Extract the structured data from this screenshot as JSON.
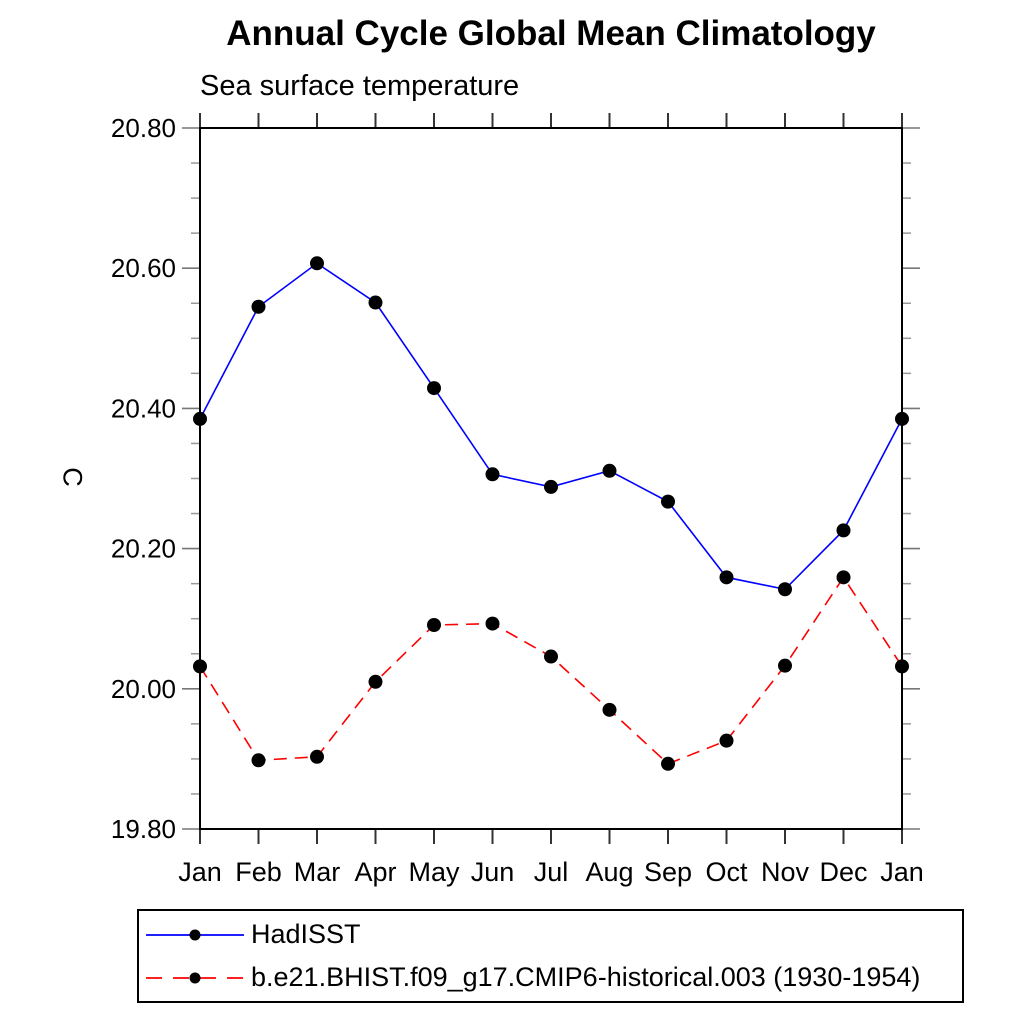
{
  "title": "Annual Cycle Global Mean Climatology",
  "subtitle": "Sea surface temperature",
  "ylabel": "C",
  "colors": {
    "hadisst_line": "#0000ff",
    "model_line": "#ff0000",
    "marker": "#000000",
    "axis": "#000000",
    "major_tick": "#777777",
    "minor_tick": "#999999"
  },
  "chart_data": {
    "type": "line",
    "title": "Annual Cycle Global Mean Climatology",
    "left_subtitle": "Sea surface temperature",
    "xlabel": "",
    "ylabel": "C",
    "categories": [
      "Jan",
      "Feb",
      "Mar",
      "Apr",
      "May",
      "Jun",
      "Jul",
      "Aug",
      "Sep",
      "Oct",
      "Nov",
      "Dec",
      "Jan"
    ],
    "series": [
      {
        "name": "HadISST",
        "color": "#0000ff",
        "line_style": "solid",
        "marker": "filled-circle",
        "marker_color": "#000000",
        "values": [
          20.385,
          20.545,
          20.607,
          20.551,
          20.429,
          20.306,
          20.288,
          20.311,
          20.267,
          20.159,
          20.142,
          20.226,
          20.385
        ]
      },
      {
        "name": "b.e21.BHIST.f09_g17.CMIP6-historical.003 (1930-1954)",
        "color": "#ff0000",
        "line_style": "dashed",
        "marker": "filled-circle",
        "marker_color": "#000000",
        "values": [
          20.032,
          19.898,
          19.903,
          20.01,
          20.091,
          20.093,
          20.046,
          19.97,
          19.893,
          19.926,
          20.033,
          20.159,
          20.032
        ]
      }
    ],
    "ylim": [
      19.8,
      20.8
    ],
    "ytick_labels": [
      "19.80",
      "20.00",
      "20.20",
      "20.40",
      "20.60",
      "20.80"
    ],
    "ytick_step": 0.2,
    "yminor_step": 0.05,
    "grid": false,
    "legend_position": "bottom-left"
  }
}
